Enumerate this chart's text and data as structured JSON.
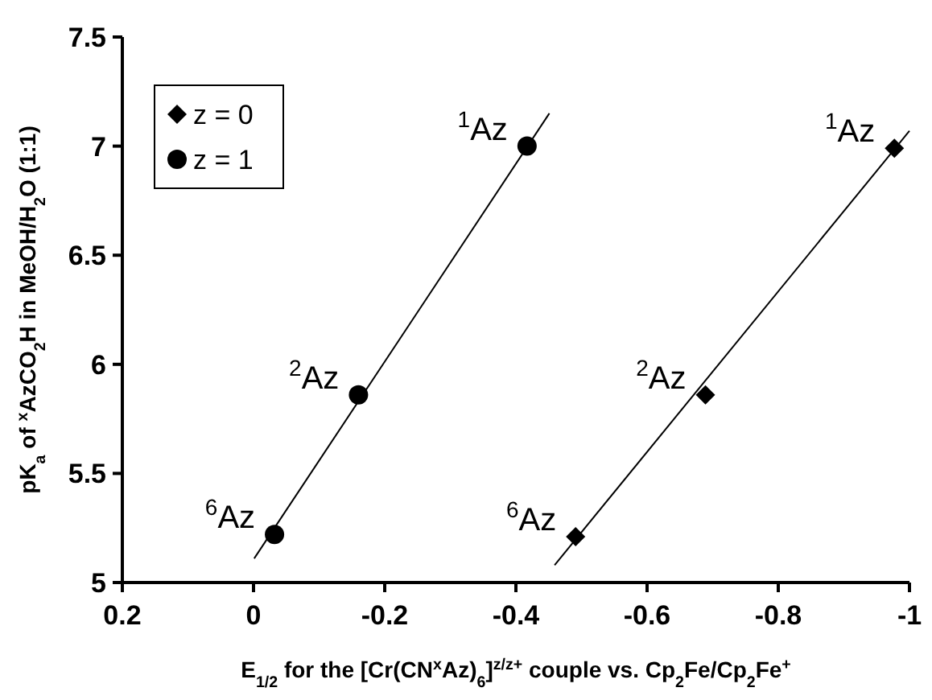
{
  "chart_data": {
    "type": "scatter",
    "xlabel": "E$_{1/2}$ for the [Cr(CN$^{x}$Az)$_{6}$]$^{z/z+}$ couple vs. Cp$_{2}$Fe/Cp$_{2}$Fe$^{+}$",
    "ylabel": "pK$_{a}$ of $^{x}$AzCO$_{2}$H in MeOH/H$_{2}$O (1:1)",
    "xlim": [
      0.2,
      -1
    ],
    "xticks": [
      0.2,
      0,
      -0.2,
      -0.4,
      -0.6,
      -0.8,
      -1
    ],
    "ylim": [
      5,
      7.5
    ],
    "yticks": [
      5,
      5.5,
      6,
      6.5,
      7,
      7.5
    ],
    "grid": false,
    "legend": "top left",
    "series": [
      {
        "name": "z = 0",
        "marker": "diamond",
        "color": "#000000",
        "x": [
          -0.977,
          -0.689,
          -0.491
        ],
        "values": [
          6.99,
          5.86,
          5.21
        ]
      },
      {
        "name": "z = 1",
        "marker": "circle",
        "color": "#000000",
        "x": [
          -0.417,
          -0.16,
          -0.032
        ],
        "values": [
          7.0,
          5.86,
          5.22
        ]
      },
      {
        "type": "line",
        "marker": "none",
        "line_style": "solid",
        "color": "#000000",
        "x": [
          -0.001,
          -0.451
        ],
        "values": [
          5.11,
          7.15
        ]
      },
      {
        "type": "line",
        "marker": "none",
        "line_style": "solid",
        "color": "#000000",
        "x": [
          -0.459,
          -1.0
        ],
        "values": [
          5.08,
          7.07
        ]
      }
    ],
    "annotations": [
      {
        "text": "$^{1}$Az",
        "x": -0.417,
        "y": 7.0
      },
      {
        "text": "$^{2}$Az",
        "x": -0.16,
        "y": 5.86
      },
      {
        "text": "$^{6}$Az",
        "x": -0.032,
        "y": 5.22
      },
      {
        "text": "$^{1}$Az",
        "x": -0.977,
        "y": 6.99
      },
      {
        "text": "$^{2}$Az",
        "x": -0.689,
        "y": 5.86
      },
      {
        "text": "$^{6}$Az",
        "x": -0.491,
        "y": 5.21
      }
    ]
  }
}
